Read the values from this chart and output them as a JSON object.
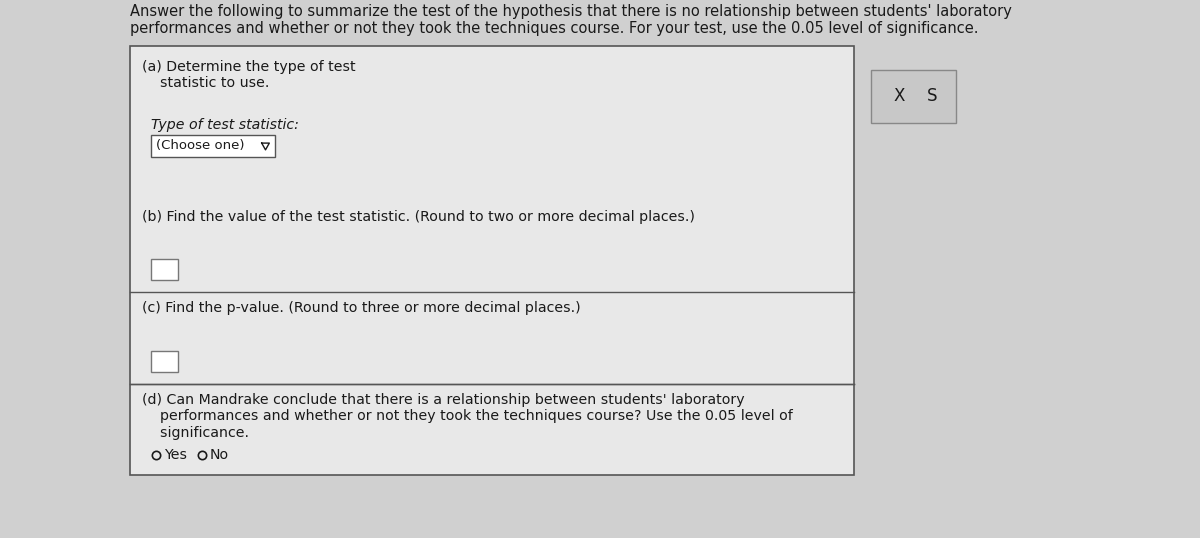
{
  "bg_color": "#d0d0d0",
  "panel_bg": "#e8e8e8",
  "header_text": "Answer the following to summarize the test of the hypothesis that there is no relationship between students' laboratory\nperformances and whether or not they took the techniques course. For your test, use the 0.05 level of significance.",
  "section_a_label": "(a) Determine the type of test\n    statistic to use.",
  "section_a_sub1": "Type of test statistic:",
  "section_a_sub2": "(Choose one)",
  "section_b_label": "(b) Find the value of the test statistic. (Round to two or more decimal places.)",
  "section_b_input": "□",
  "section_c_label": "(c) Find the p-value. (Round to three or more decimal places.)",
  "section_c_input": "□",
  "section_d_label": "(d) Can Mandrake conclude that there is a relationship between students' laboratory\n    performances and whether or not they took the techniques course? Use the 0.05 level of\n    significance.",
  "section_d_yes": "Yes",
  "section_d_no": "No",
  "box_color": "#ffffff",
  "box_border": "#555555",
  "text_color": "#1a1a1a",
  "side_box_bg": "#c8c8c8",
  "side_x": "X",
  "side_s": "S",
  "font_size_header": 10.5,
  "font_size_body": 10.2,
  "font_size_small": 9.5
}
